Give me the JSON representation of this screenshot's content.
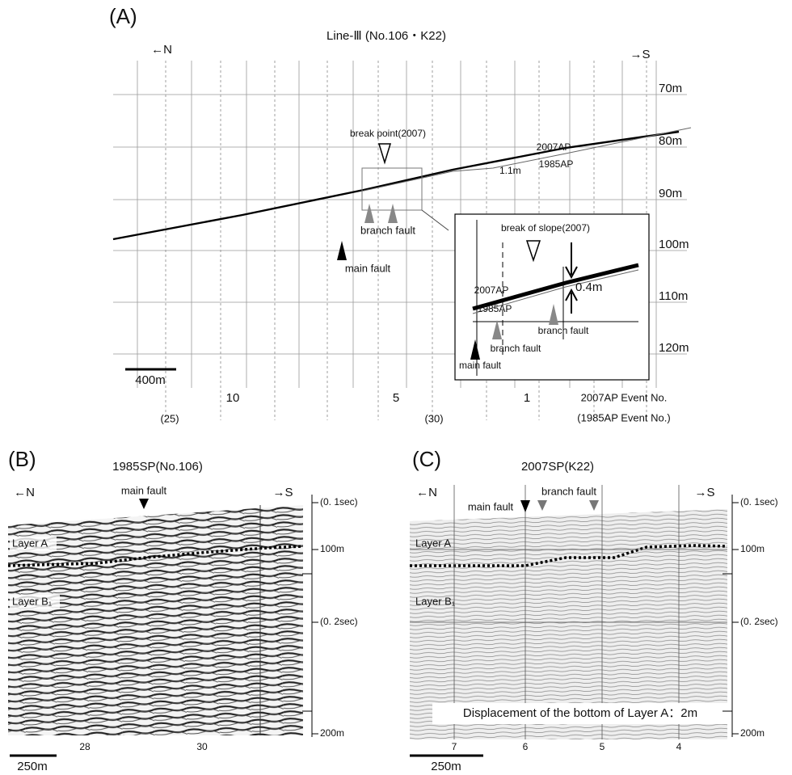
{
  "panel_a": {
    "label": "(A)",
    "title": "Line-Ⅲ (No.106・K22)",
    "north": "←N",
    "south": "→S",
    "depths": [
      "70m",
      "80m",
      "90m",
      "100m",
      "110m",
      "120m"
    ],
    "break_point": "break point(2007)",
    "ap2007": "2007AP",
    "ap1985": "1985AP",
    "offset": "1.1m",
    "branch_fault": "branch fault",
    "main_fault": "main fault",
    "scale": "400m",
    "event_numbers": [
      "10",
      "5",
      "1"
    ],
    "old_event_numbers": [
      "(25)",
      "(30)"
    ],
    "event_axis": "2007AP Event No.",
    "old_event_axis": "(1985AP Event No.)",
    "inset": {
      "break_of_slope": "break of slope(2007)",
      "ap2007": "2007AP",
      "ap1985": "1985AP",
      "offset": "0.4m",
      "branch_fault_1": "branch fault",
      "branch_fault_2": "branch fault",
      "main_fault": "main fault"
    }
  },
  "panel_b": {
    "label": "(B)",
    "title": "1985SP(No.106)",
    "north": "←N",
    "south": "→S",
    "main_fault": "main fault",
    "layer_a": "Layer A",
    "layer_b": "Layer B₁",
    "axis": [
      "(0. 1sec)",
      "100m",
      "(0. 2sec)",
      "200m"
    ],
    "event_numbers": [
      "28",
      "30"
    ],
    "scale": "250m"
  },
  "panel_c": {
    "label": "(C)",
    "title": "2007SP(K22)",
    "north": "←N",
    "south": "→S",
    "main_fault": "main fault",
    "branch_fault": "branch fault",
    "layer_a": "Layer A",
    "layer_b": "Layer B₁",
    "axis": [
      "(0. 1sec)",
      "100m",
      "(0. 2sec)",
      "200m"
    ],
    "event_numbers": [
      "7",
      "6",
      "5",
      "4"
    ],
    "displacement": "Displacement of the bottom of Layer A：2m",
    "scale": "250m"
  }
}
